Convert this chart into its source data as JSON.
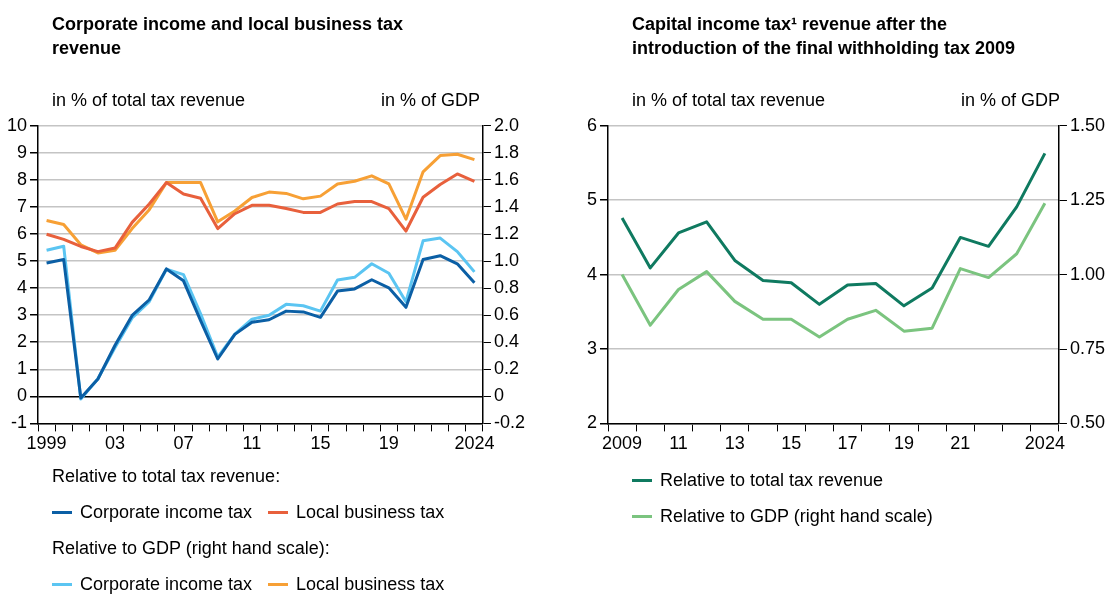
{
  "chart_data": [
    {
      "type": "line",
      "title": "Corporate income and local business tax revenue",
      "ylabel": "in % of total tax revenue",
      "y2label": "in % of GDP",
      "categories": [
        "1999",
        null,
        null,
        null,
        "03",
        null,
        null,
        null,
        "07",
        null,
        null,
        null,
        "11",
        null,
        null,
        null,
        "15",
        null,
        null,
        null,
        "19",
        null,
        null,
        null,
        null,
        "2024"
      ],
      "series": [
        {
          "name": "Corporate income tax",
          "color": "#0b5fa5",
          "values": [
            4.93,
            5.06,
            -0.06,
            0.64,
            1.89,
            2.99,
            3.57,
            4.71,
            4.27,
            2.8,
            1.38,
            2.29,
            2.74,
            2.83,
            3.15,
            3.12,
            2.92,
            3.89,
            3.97,
            4.31,
            4.01,
            3.29,
            5.06,
            5.2,
            4.9,
            4.2
          ]
        },
        {
          "name": "Local business tax",
          "color": "#e8603c",
          "values": [
            5.99,
            5.8,
            5.54,
            5.35,
            5.48,
            6.43,
            7.11,
            7.9,
            7.48,
            7.32,
            6.2,
            6.75,
            7.06,
            7.06,
            6.94,
            6.8,
            6.8,
            7.11,
            7.2,
            7.2,
            6.94,
            6.11,
            7.36,
            7.83,
            8.22,
            7.95
          ]
        },
        {
          "name": "Corporate income tax",
          "color": "#5bc5f2",
          "axis": "y2",
          "values": [
            1.08,
            1.11,
            -0.02,
            0.13,
            0.36,
            0.58,
            0.7,
            0.94,
            0.9,
            0.61,
            0.29,
            0.46,
            0.57,
            0.6,
            0.68,
            0.67,
            0.63,
            0.86,
            0.88,
            0.98,
            0.91,
            0.7,
            1.15,
            1.17,
            1.07,
            0.92
          ]
        },
        {
          "name": "Local business tax",
          "color": "#f7a035",
          "axis": "y2",
          "values": [
            1.3,
            1.27,
            1.12,
            1.06,
            1.08,
            1.24,
            1.38,
            1.58,
            1.58,
            1.58,
            1.29,
            1.37,
            1.47,
            1.51,
            1.5,
            1.46,
            1.48,
            1.57,
            1.59,
            1.63,
            1.57,
            1.31,
            1.66,
            1.78,
            1.79,
            1.75
          ]
        }
      ],
      "ylim": [
        -1,
        10
      ],
      "yticks": [
        -1,
        0,
        1,
        2,
        3,
        4,
        5,
        6,
        7,
        8,
        9,
        10
      ],
      "y2lim": [
        -0.2,
        2.0
      ],
      "y2ticks": [
        -0.2,
        0,
        0.2,
        0.4,
        0.6,
        0.8,
        {
          "value": 1,
          "label": "1.0"
        },
        1.2,
        1.4,
        1.6,
        1.8,
        {
          "value": 2,
          "label": "2.0"
        }
      ],
      "annotations": [
        "Relative to total tax revenue:",
        "Relative to GDP (right hand scale):"
      ],
      "grid": "y",
      "legend": "bottom",
      "marker": "none",
      "line_style": "solid"
    },
    {
      "type": "line",
      "title": "Capital income tax¹ revenue after the introduction of the final withholding tax 2009",
      "ylabel": "in % of total tax revenue",
      "y2label": "in % of GDP",
      "categories": [
        "2009",
        null,
        "11",
        null,
        "13",
        null,
        "15",
        null,
        "17",
        null,
        "19",
        null,
        "21",
        null,
        null,
        "2024"
      ],
      "series": [
        {
          "name": "Relative to total tax revenue",
          "color": "#0f7a60",
          "values": [
            4.76,
            4.09,
            4.56,
            4.71,
            4.19,
            3.92,
            3.89,
            3.6,
            3.86,
            3.88,
            3.58,
            3.82,
            4.5,
            4.38,
            4.91,
            5.63
          ]
        },
        {
          "name": "Relative to GDP (right hand scale)",
          "color": "#7bc47f",
          "axis": "y2",
          "values": [
            1.0,
            0.83,
            0.95,
            1.01,
            0.91,
            0.85,
            0.85,
            0.79,
            0.85,
            0.88,
            0.81,
            0.82,
            1.02,
            0.99,
            1.07,
            1.24
          ]
        }
      ],
      "ylim": [
        2,
        6
      ],
      "yticks": [
        2,
        3,
        4,
        5,
        6
      ],
      "y2lim": [
        0.5,
        1.5
      ],
      "y2ticks": [
        {
          "value": 0.5,
          "label": "0.50"
        },
        {
          "value": 0.75,
          "label": "0.75"
        },
        {
          "value": 1,
          "label": "1.00"
        },
        {
          "value": 1.25,
          "label": "1.25"
        },
        {
          "value": 1.5,
          "label": "1.50"
        }
      ],
      "grid": "y",
      "legend": "bottom",
      "marker": "none",
      "line_style": "solid"
    }
  ]
}
